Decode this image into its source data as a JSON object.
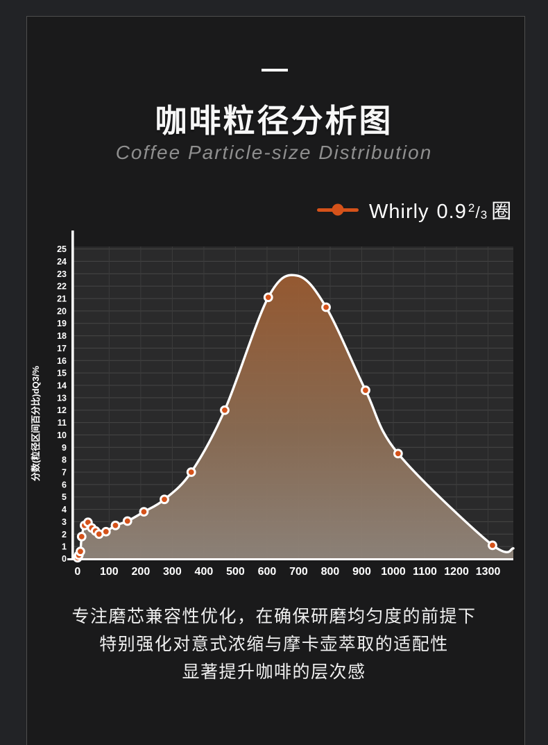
{
  "page": {
    "background": "#222326",
    "frame_border_color": "#4e4e4e"
  },
  "header": {
    "title": "咖啡粒径分析图",
    "subtitle": "Coffee Particle-size Distribution"
  },
  "legend": {
    "name": "Whirly",
    "value": "0.9",
    "fraction_numerator": "2",
    "fraction_slash": "/",
    "fraction_denominator": "3",
    "unit": "圈",
    "marker_color": "#d5521a"
  },
  "chart_data": {
    "type": "line",
    "title": "",
    "xlabel": "",
    "ylabel": "分数(粒径区间百分比)dQ3/%",
    "xlim": [
      -15,
      1380
    ],
    "ylim": [
      0,
      25.2
    ],
    "x_ticks": [
      0,
      100,
      200,
      300,
      400,
      500,
      600,
      700,
      800,
      900,
      1000,
      1100,
      1200,
      1300
    ],
    "y_ticks": [
      0,
      1,
      2,
      3,
      4,
      5,
      6,
      7,
      8,
      9,
      10,
      11,
      12,
      13,
      14,
      15,
      16,
      17,
      18,
      19,
      20,
      21,
      22,
      23,
      24,
      25
    ],
    "grid": true,
    "legend_position": "top-right",
    "series": [
      {
        "name": "Whirly 0.9 2/3 圈",
        "smooth": true,
        "points": [
          [
            0,
            0.1
          ],
          [
            4,
            0.3
          ],
          [
            9,
            0.6
          ],
          [
            13,
            1.8
          ],
          [
            22,
            2.7
          ],
          [
            33,
            2.95
          ],
          [
            45,
            2.5
          ],
          [
            57,
            2.25
          ],
          [
            68,
            2.0
          ],
          [
            90,
            2.2
          ],
          [
            120,
            2.7
          ],
          [
            158,
            3.05
          ],
          [
            210,
            3.8
          ],
          [
            275,
            4.8
          ],
          [
            360,
            7.0
          ],
          [
            466,
            12.0
          ],
          [
            604,
            21.1
          ],
          [
            787,
            20.3
          ],
          [
            912,
            13.6
          ],
          [
            1015,
            8.5
          ],
          [
            1314,
            1.1
          ]
        ]
      }
    ],
    "curve_shape_points": [
      [
        695,
        22.85
      ],
      [
        1380,
        0.85
      ]
    ],
    "colors": {
      "plot_bg": "#2a2a2b",
      "grid_h": "#474747",
      "grid_v": "#3c3c3c",
      "axis": "#ffffff",
      "line": "#ffffff",
      "marker": "#d5521a",
      "marker_ring": "#ffffff",
      "fill_top": "#9a5b31",
      "fill_mid": "#8b6c53",
      "fill_bottom": "#90857b",
      "fill_opacity": 0.95,
      "tick_color": "#ffffff"
    }
  },
  "footer": {
    "lines": [
      "专注磨芯兼容性优化，在确保研磨均匀度的前提下",
      "特别强化对意式浓缩与摩卡壶萃取的适配性",
      "显著提升咖啡的层次感"
    ]
  }
}
